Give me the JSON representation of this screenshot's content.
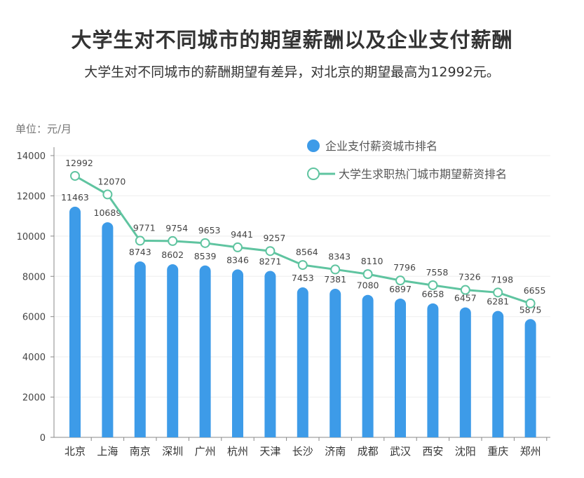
{
  "title": "大学生对不同城市的期望薪酬以及企业支付薪酬",
  "subtitle": "大学生对不同城市的薪酬期望有差异，对北京的期望最高为12992元。",
  "chart_data": {
    "type": "bar+line",
    "unit_label": "单位：元/月",
    "categories": [
      "北京",
      "上海",
      "南京",
      "深圳",
      "广州",
      "杭州",
      "天津",
      "长沙",
      "济南",
      "成都",
      "武汉",
      "西安",
      "沈阳",
      "重庆",
      "郑州"
    ],
    "series": [
      {
        "name": "企业支付薪资城市排名",
        "type": "bar",
        "color": "#3d9be8",
        "values": [
          11463,
          10689,
          8743,
          8602,
          8539,
          8346,
          8271,
          7453,
          7381,
          7080,
          6897,
          6658,
          6457,
          6281,
          5875
        ]
      },
      {
        "name": "大学生求职热门城市期望薪资排名",
        "type": "line",
        "color": "#5fc4a0",
        "values": [
          12992,
          12070,
          9771,
          9754,
          9653,
          9441,
          9257,
          8564,
          8343,
          8110,
          7796,
          7558,
          7326,
          7198,
          6655
        ]
      }
    ],
    "ylim": [
      0,
      14000
    ],
    "yticks": [
      0,
      2000,
      4000,
      6000,
      8000,
      10000,
      12000,
      14000
    ],
    "grid": true,
    "legend": "top-right"
  }
}
